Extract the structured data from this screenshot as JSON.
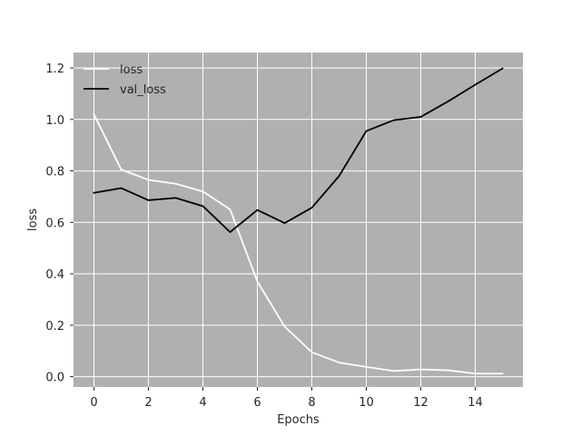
{
  "chart_data": {
    "type": "line",
    "title": "",
    "xlabel": "Epochs",
    "ylabel": "loss",
    "xlim": [
      -0.75,
      15.75
    ],
    "ylim": [
      -0.04,
      1.26
    ],
    "xticks": [
      0,
      2,
      4,
      6,
      8,
      10,
      12,
      14
    ],
    "yticks": [
      0.0,
      0.2,
      0.4,
      0.6,
      0.8,
      1.0,
      1.2
    ],
    "grid": true,
    "legend_position": "top-left",
    "background_color": "#b0b0b0",
    "grid_color": "#ffffff",
    "x": [
      0,
      1,
      2,
      3,
      4,
      5,
      6,
      7,
      8,
      9,
      10,
      11,
      12,
      13,
      14,
      15
    ],
    "series": [
      {
        "name": "loss",
        "color": "#ffffff",
        "values": [
          1.02,
          0.805,
          0.765,
          0.75,
          0.72,
          0.65,
          0.37,
          0.195,
          0.095,
          0.055,
          0.038,
          0.022,
          0.028,
          0.025,
          0.012,
          0.012
        ]
      },
      {
        "name": "val_loss",
        "color": "#000000",
        "values": [
          0.715,
          0.733,
          0.686,
          0.695,
          0.663,
          0.562,
          0.648,
          0.597,
          0.657,
          0.78,
          0.955,
          0.997,
          1.01,
          1.07,
          1.135,
          1.198
        ]
      }
    ]
  }
}
